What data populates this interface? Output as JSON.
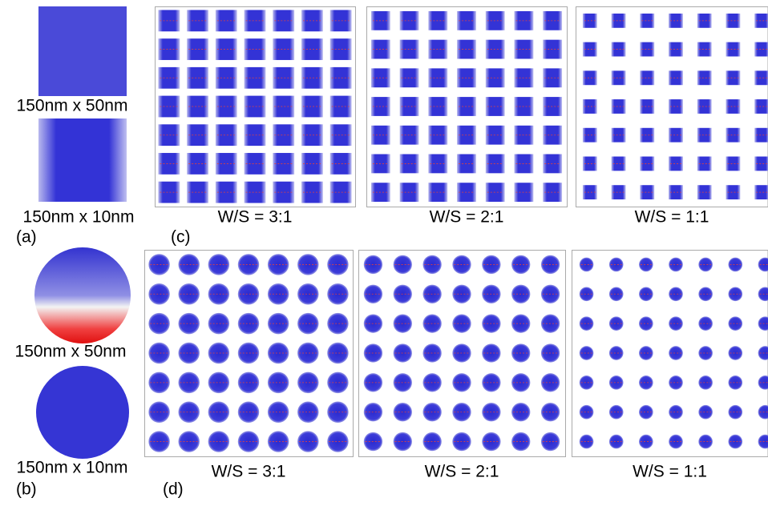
{
  "panels": [
    {
      "label": "(a)",
      "captions": [
        "150nm x 50nm",
        "150nm x 10nm"
      ]
    },
    {
      "label": "(b)",
      "captions": [
        "150nm x 50nm",
        "150nm x 10nm"
      ]
    },
    {
      "label": "(c)",
      "arrays": [
        "W/S = 3:1",
        "W/S = 2:1",
        "W/S = 1:1"
      ]
    },
    {
      "label": "(d)",
      "arrays": [
        "W/S = 3:1",
        "W/S = 2:1",
        "W/S = 1:1"
      ]
    }
  ]
}
